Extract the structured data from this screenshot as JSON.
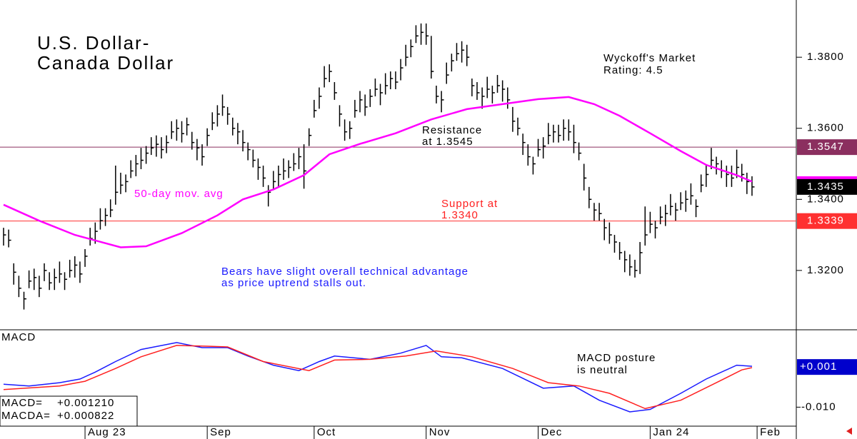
{
  "chart_data": [
    {
      "type": "ohlc",
      "title": [
        "U.S. Dollar-",
        "Canada Dollar"
      ],
      "rating": [
        "Wyckoff's Market",
        "Rating: 4.5"
      ],
      "comment": [
        "Bears have slight overall technical advantage",
        "as price uptrend stalls out."
      ],
      "comment_color": "#1a1aff",
      "color": "#000000",
      "xlim": [
        -0.7,
        155.7
      ],
      "ylim": [
        1.3041,
        1.3949
      ],
      "yticks": [
        {
          "value": 1.32,
          "label": "1.3200"
        },
        {
          "value": 1.34,
          "label": "1.3400"
        },
        {
          "value": 1.36,
          "label": "1.3600"
        },
        {
          "value": 1.38,
          "label": "1.3800"
        }
      ],
      "levels": [
        {
          "value": 1.3547,
          "label": "1.3547",
          "color": "#8b2f5f",
          "note": [
            "Resistance",
            "at 1.3545"
          ],
          "note_color": "#000000"
        },
        {
          "value": 1.3339,
          "label": "1.3339",
          "color": "#ff3030",
          "note": [
            "Support at",
            "1.3340"
          ],
          "note_color": "#ff2020"
        }
      ],
      "last": {
        "value": 1.3435,
        "label": "1.3435"
      },
      "high": [
        1.332,
        1.3315,
        1.322,
        1.3185,
        1.314,
        1.32,
        1.3205,
        1.3185,
        1.322,
        1.3195,
        1.3205,
        1.3225,
        1.3195,
        1.323,
        1.324,
        1.3225,
        1.326,
        1.332,
        1.3335,
        1.3375,
        1.3375,
        1.34,
        1.3495,
        1.3475,
        1.347,
        1.351,
        1.3525,
        1.3545,
        1.355,
        1.3575,
        1.358,
        1.3575,
        1.358,
        1.362,
        1.3625,
        1.362,
        1.363,
        1.359,
        1.357,
        1.3555,
        1.36,
        1.3645,
        1.3665,
        1.3695,
        1.366,
        1.363,
        1.3615,
        1.3595,
        1.356,
        1.354,
        1.3515,
        1.3495,
        1.344,
        1.348,
        1.3495,
        1.3515,
        1.351,
        1.353,
        1.3545,
        1.3555,
        1.36,
        1.368,
        1.3715,
        1.3775,
        1.378,
        1.373,
        1.3665,
        1.3625,
        1.362,
        1.368,
        1.3705,
        1.3695,
        1.371,
        1.374,
        1.3725,
        1.3755,
        1.376,
        1.376,
        1.3795,
        1.3835,
        1.385,
        1.389,
        1.3895,
        1.3895,
        1.386,
        1.372,
        1.3705,
        1.3785,
        1.381,
        1.384,
        1.3845,
        1.3835,
        1.374,
        1.373,
        1.3715,
        1.3745,
        1.372,
        1.375,
        1.3735,
        1.3715,
        1.366,
        1.363,
        1.3585,
        1.3555,
        1.352,
        1.357,
        1.3575,
        1.3615,
        1.361,
        1.361,
        1.3625,
        1.3625,
        1.361,
        1.356,
        1.35,
        1.3435,
        1.339,
        1.339,
        1.3345,
        1.3335,
        1.33,
        1.328,
        1.3255,
        1.3245,
        1.323,
        1.328,
        1.338,
        1.3365,
        1.334,
        1.338,
        1.3385,
        1.3415,
        1.339,
        1.342,
        1.3425,
        1.3445,
        1.34,
        1.347,
        1.3495,
        1.3545,
        1.352,
        1.351,
        1.3495,
        1.3495,
        1.354,
        1.35,
        1.3475,
        1.3465
      ],
      "low": [
        1.327,
        1.3265,
        1.316,
        1.3125,
        1.309,
        1.315,
        1.3145,
        1.3125,
        1.317,
        1.3145,
        1.3145,
        1.3165,
        1.3145,
        1.318,
        1.318,
        1.3165,
        1.321,
        1.327,
        1.3275,
        1.3315,
        1.3325,
        1.335,
        1.3385,
        1.3415,
        1.342,
        1.346,
        1.3465,
        1.3485,
        1.35,
        1.3525,
        1.352,
        1.3515,
        1.353,
        1.357,
        1.3565,
        1.356,
        1.358,
        1.354,
        1.351,
        1.3495,
        1.355,
        1.3595,
        1.3605,
        1.3635,
        1.361,
        1.358,
        1.3555,
        1.3535,
        1.351,
        1.349,
        1.3455,
        1.3435,
        1.338,
        1.343,
        1.3435,
        1.3455,
        1.346,
        1.348,
        1.3485,
        1.343,
        1.355,
        1.363,
        1.3655,
        1.3715,
        1.373,
        1.368,
        1.3605,
        1.3565,
        1.357,
        1.363,
        1.3645,
        1.3635,
        1.366,
        1.369,
        1.3665,
        1.3695,
        1.371,
        1.371,
        1.3735,
        1.3775,
        1.38,
        1.384,
        1.3835,
        1.3835,
        1.374,
        1.367,
        1.3645,
        1.3725,
        1.376,
        1.379,
        1.3785,
        1.3775,
        1.369,
        1.368,
        1.3655,
        1.3685,
        1.367,
        1.37,
        1.3675,
        1.3655,
        1.359,
        1.358,
        1.3525,
        1.3495,
        1.347,
        1.352,
        1.3515,
        1.3555,
        1.356,
        1.356,
        1.3565,
        1.3565,
        1.353,
        1.351,
        1.3425,
        1.3375,
        1.334,
        1.334,
        1.3285,
        1.3275,
        1.325,
        1.323,
        1.3195,
        1.3185,
        1.318,
        1.319,
        1.327,
        1.3305,
        1.329,
        1.333,
        1.3325,
        1.3355,
        1.334,
        1.337,
        1.3365,
        1.3385,
        1.335,
        1.342,
        1.3435,
        1.3485,
        1.347,
        1.346,
        1.3435,
        1.3435,
        1.346,
        1.345,
        1.3415,
        1.341
      ],
      "close": [
        1.33,
        1.3285,
        1.3195,
        1.315,
        1.312,
        1.317,
        1.318,
        1.315,
        1.32,
        1.3165,
        1.318,
        1.319,
        1.3175,
        1.32,
        1.3215,
        1.319,
        1.324,
        1.329,
        1.331,
        1.334,
        1.3355,
        1.337,
        1.342,
        1.344,
        1.345,
        1.348,
        1.35,
        1.351,
        1.353,
        1.3545,
        1.3555,
        1.354,
        1.356,
        1.359,
        1.36,
        1.3585,
        1.361,
        1.356,
        1.3545,
        1.352,
        1.358,
        1.3615,
        1.364,
        1.366,
        1.364,
        1.36,
        1.359,
        1.356,
        1.354,
        1.351,
        1.349,
        1.346,
        1.342,
        1.345,
        1.347,
        1.348,
        1.349,
        1.35,
        1.352,
        1.348,
        1.358,
        1.365,
        1.369,
        1.374,
        1.376,
        1.37,
        1.364,
        1.359,
        1.36,
        1.365,
        1.368,
        1.366,
        1.369,
        1.371,
        1.37,
        1.372,
        1.374,
        1.373,
        1.377,
        1.38,
        1.383,
        1.386,
        1.387,
        1.386,
        1.376,
        1.369,
        1.368,
        1.375,
        1.379,
        1.381,
        1.382,
        1.38,
        1.372,
        1.37,
        1.369,
        1.371,
        1.37,
        1.372,
        1.371,
        1.368,
        1.362,
        1.36,
        1.356,
        1.352,
        1.35,
        1.354,
        1.355,
        1.358,
        1.359,
        1.358,
        1.36,
        1.359,
        1.356,
        1.353,
        1.346,
        1.34,
        1.337,
        1.336,
        1.332,
        1.33,
        1.328,
        1.325,
        1.323,
        1.321,
        1.32,
        1.325,
        1.33,
        1.333,
        1.332,
        1.335,
        1.336,
        1.338,
        1.337,
        1.339,
        1.34,
        1.341,
        1.338,
        1.344,
        1.347,
        1.351,
        1.35,
        1.348,
        1.347,
        1.346,
        1.349,
        1.347,
        1.345,
        1.3435
      ],
      "ma": {
        "name": "50-day mov. avg",
        "color": "#ff00ff",
        "x": [
          0,
          7,
          14,
          23,
          28,
          35,
          42,
          47,
          53,
          59,
          64,
          70,
          77,
          84,
          91,
          98,
          105,
          111,
          116,
          121,
          127,
          133,
          138,
          144,
          147
        ],
        "values": [
          1.3385,
          1.334,
          1.33,
          1.3265,
          1.3268,
          1.3305,
          1.3355,
          1.34,
          1.3428,
          1.3468,
          1.3527,
          1.3556,
          1.3586,
          1.3625,
          1.3654,
          1.3668,
          1.3682,
          1.3688,
          1.3668,
          1.3635,
          1.3586,
          1.3536,
          1.3497,
          1.3468,
          1.345
        ]
      }
    },
    {
      "type": "line",
      "title": "MACD",
      "note": [
        "MACD posture",
        "is neutral"
      ],
      "xlim": [
        -0.7,
        155.7
      ],
      "ylim": [
        -0.0152,
        0.0108
      ],
      "yticks": [
        {
          "value": -0.01,
          "label": "-0.010"
        }
      ],
      "current": {
        "value": 0.001,
        "label": "+0.001",
        "color": "#0000cc"
      },
      "xticks": [
        {
          "value": 16,
          "label": "Aug 23"
        },
        {
          "value": 40,
          "label": "Sep"
        },
        {
          "value": 61,
          "label": "Oct"
        },
        {
          "value": 83,
          "label": "Nov"
        },
        {
          "value": 105,
          "label": "Dec"
        },
        {
          "value": 127,
          "label": "Jan 24"
        },
        {
          "value": 148,
          "label": "Feb"
        }
      ],
      "series": [
        {
          "name": "MACD",
          "label": "MACD=",
          "last_label": "+0.001210",
          "color": "#1a1aff",
          "x": [
            0,
            5,
            11,
            15,
            18,
            22,
            27,
            34,
            39,
            44,
            48,
            53,
            58,
            62,
            65,
            72,
            78,
            83,
            86,
            90,
            98,
            106,
            112,
            117,
            123,
            127,
            133,
            138,
            144,
            147
          ],
          "values": [
            -0.0037,
            -0.0042,
            -0.0033,
            -0.0023,
            -0.0004,
            0.0025,
            0.0058,
            0.0077,
            0.0063,
            0.0063,
            0.004,
            0.0015,
            0.0,
            0.0025,
            0.004,
            0.0031,
            0.0048,
            0.0069,
            0.0038,
            0.0035,
            0.0006,
            -0.0048,
            -0.0042,
            -0.0081,
            -0.0113,
            -0.0106,
            -0.0062,
            -0.0023,
            0.0015,
            0.00121
          ]
        },
        {
          "name": "MACDA",
          "label": "MACDA=",
          "last_label": "+0.000822",
          "color": "#ff2020",
          "x": [
            0,
            11,
            16,
            22,
            27,
            34,
            40,
            44,
            51,
            60,
            65,
            72,
            79,
            85,
            92,
            100,
            107,
            113,
            119,
            126,
            133,
            140,
            145,
            147
          ],
          "values": [
            -0.0052,
            -0.0042,
            -0.0029,
            0.0006,
            0.0038,
            0.0069,
            0.0067,
            0.0065,
            0.0025,
            0.0,
            0.0029,
            0.0031,
            0.004,
            0.0054,
            0.0038,
            0.0006,
            -0.0033,
            -0.0042,
            -0.0062,
            -0.0104,
            -0.0081,
            -0.0033,
            0.0002,
            0.000822
          ]
        }
      ]
    }
  ]
}
